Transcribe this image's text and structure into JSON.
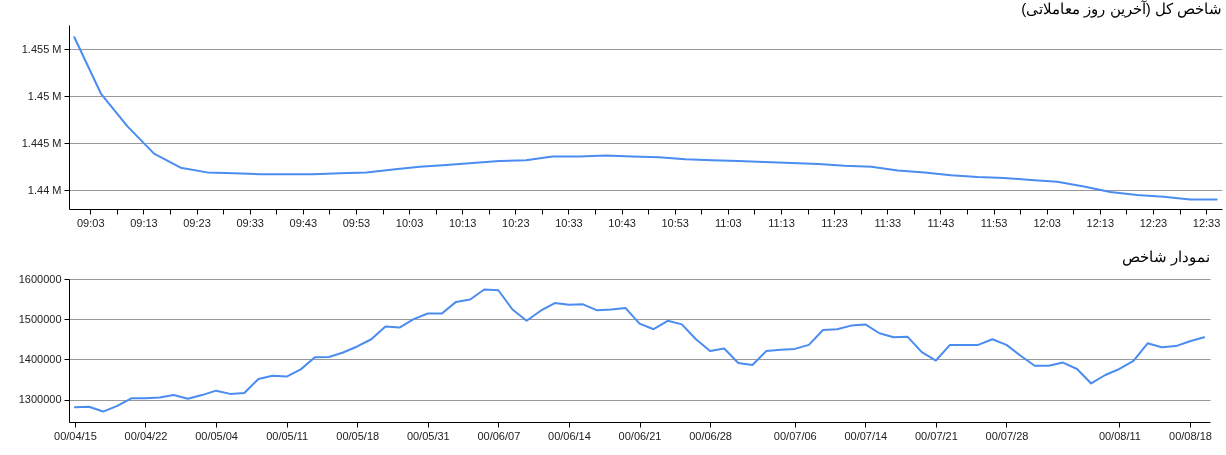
{
  "chart_data": [
    {
      "type": "line",
      "title": "شاخص کل (آخرین روز معاملاتی)",
      "color": "#4a8cf0",
      "grid": "y",
      "x": [
        9,
        9.0833,
        9.1667,
        9.25,
        9.3333,
        9.4167,
        9.5,
        9.5833,
        9.6667,
        9.75,
        9.8333,
        9.9167,
        10,
        10.0833,
        10.1667,
        10.25,
        10.3333,
        10.4167,
        10.5,
        10.5833,
        10.6667,
        10.75,
        10.8333,
        10.9167,
        11,
        11.0833,
        11.1667,
        11.25,
        11.3333,
        11.4167,
        11.5,
        11.5833,
        11.6667,
        11.75,
        11.8333,
        11.9167,
        12,
        12.0833,
        12.1667,
        12.25,
        12.3333,
        12.4167,
        12.5,
        12.5833
      ],
      "values": [
        1456300,
        1450300,
        1446800,
        1443900,
        1442400,
        1441900,
        1441800,
        1441700,
        1441700,
        1441700,
        1441800,
        1441900,
        1442200,
        1442500,
        1442700,
        1442900,
        1443100,
        1443200,
        1443600,
        1443600,
        1443700,
        1443600,
        1443500,
        1443300,
        1443200,
        1443100,
        1443000,
        1442900,
        1442800,
        1442600,
        1442500,
        1442100,
        1441900,
        1441600,
        1441400,
        1441300,
        1441100,
        1440900,
        1440400,
        1439800,
        1439500,
        1439300,
        1439000,
        1439000
      ],
      "xlim": [
        8.9833,
        12.6
      ],
      "xticks": [
        {
          "value": 9.05,
          "label": "09:03"
        },
        {
          "value": 9.1333,
          "label": null
        },
        {
          "value": 9.2167,
          "label": "09:13"
        },
        {
          "value": 9.3,
          "label": null
        },
        {
          "value": 9.3833,
          "label": "09:23"
        },
        {
          "value": 9.4667,
          "label": null
        },
        {
          "value": 9.55,
          "label": "09:33"
        },
        {
          "value": 9.6333,
          "label": null
        },
        {
          "value": 9.7167,
          "label": "09:43"
        },
        {
          "value": 9.8,
          "label": null
        },
        {
          "value": 9.8833,
          "label": "09:53"
        },
        {
          "value": 9.9667,
          "label": null
        },
        {
          "value": 10.05,
          "label": "10:03"
        },
        {
          "value": 10.1333,
          "label": null
        },
        {
          "value": 10.2167,
          "label": "10:13"
        },
        {
          "value": 10.3,
          "label": null
        },
        {
          "value": 10.3833,
          "label": "10:23"
        },
        {
          "value": 10.4667,
          "label": null
        },
        {
          "value": 10.55,
          "label": "10:33"
        },
        {
          "value": 10.6333,
          "label": null
        },
        {
          "value": 10.7167,
          "label": "10:43"
        },
        {
          "value": 10.8,
          "label": null
        },
        {
          "value": 10.8833,
          "label": "10:53"
        },
        {
          "value": 10.9667,
          "label": null
        },
        {
          "value": 11.05,
          "label": "11:03"
        },
        {
          "value": 11.1333,
          "label": null
        },
        {
          "value": 11.2167,
          "label": "11:13"
        },
        {
          "value": 11.3,
          "label": null
        },
        {
          "value": 11.3833,
          "label": "11:23"
        },
        {
          "value": 11.4667,
          "label": null
        },
        {
          "value": 11.55,
          "label": "11:33"
        },
        {
          "value": 11.6333,
          "label": null
        },
        {
          "value": 11.7167,
          "label": "11:43"
        },
        {
          "value": 11.8,
          "label": null
        },
        {
          "value": 11.8833,
          "label": "11:53"
        },
        {
          "value": 11.9667,
          "label": null
        },
        {
          "value": 12.05,
          "label": "12:03"
        },
        {
          "value": 12.1333,
          "label": null
        },
        {
          "value": 12.2167,
          "label": "12:13"
        },
        {
          "value": 12.3,
          "label": null
        },
        {
          "value": 12.3833,
          "label": "12:23"
        },
        {
          "value": 12.4667,
          "label": null
        },
        {
          "value": 12.55,
          "label": "12:33"
        }
      ],
      "ylim": [
        1438000,
        1457600
      ],
      "yticks": [
        {
          "value": 1440000,
          "label": "1.44 M"
        },
        {
          "value": 1445000,
          "label": "1.445 M"
        },
        {
          "value": 1450000,
          "label": "1.45 M"
        },
        {
          "value": 1455000,
          "label": "1.455 M"
        }
      ]
    },
    {
      "type": "line",
      "title": "نمودار شاخص",
      "color": "#4a8cf0",
      "grid": "y",
      "categories": [
        "00/04/15",
        null,
        null,
        null,
        null,
        "00/04/22",
        null,
        null,
        null,
        null,
        "00/05/04",
        null,
        null,
        null,
        null,
        "00/05/11",
        null,
        null,
        null,
        null,
        "00/05/18",
        null,
        null,
        null,
        null,
        "00/05/31",
        null,
        null,
        null,
        null,
        "00/06/07",
        null,
        null,
        null,
        null,
        "00/06/14",
        null,
        null,
        null,
        null,
        "00/06/21",
        null,
        null,
        null,
        null,
        "00/06/28",
        null,
        null,
        null,
        null,
        null,
        "00/07/06",
        null,
        null,
        null,
        null,
        "00/07/14",
        null,
        null,
        null,
        null,
        "00/07/21",
        null,
        null,
        null,
        null,
        "00/07/28",
        null,
        null,
        null,
        null,
        null,
        null,
        null,
        "00/08/11",
        null,
        null,
        null,
        null,
        "00/08/18",
        null
      ],
      "values": [
        1281000,
        1282000,
        1270000,
        1284000,
        1303000,
        1303000,
        1305000,
        1311000,
        1302000,
        1311000,
        1322000,
        1314000,
        1316000,
        1351000,
        1359000,
        1357000,
        1375000,
        1405000,
        1406000,
        1417000,
        1432000,
        1450000,
        1482000,
        1479000,
        1500000,
        1514000,
        1514000,
        1543000,
        1549000,
        1574000,
        1572000,
        1524000,
        1496000,
        1521000,
        1540000,
        1536000,
        1537000,
        1522000,
        1524000,
        1528000,
        1489000,
        1475000,
        1496000,
        1487000,
        1450000,
        1421000,
        1427000,
        1391000,
        1386000,
        1421000,
        1424000,
        1426000,
        1436000,
        1473000,
        1475000,
        1484000,
        1487000,
        1465000,
        1455000,
        1456000,
        1418000,
        1397000,
        1436000,
        1436000,
        1436000,
        1450000,
        1436000,
        1409000,
        1384000,
        1384000,
        1392000,
        1376000,
        1340000,
        1361000,
        1376000,
        1396000,
        1440000,
        1430000,
        1433000,
        1445000,
        1455000
      ],
      "ylim": [
        1244000,
        1600000
      ],
      "yticks": [
        1300000,
        1400000,
        1500000,
        1600000
      ]
    }
  ]
}
